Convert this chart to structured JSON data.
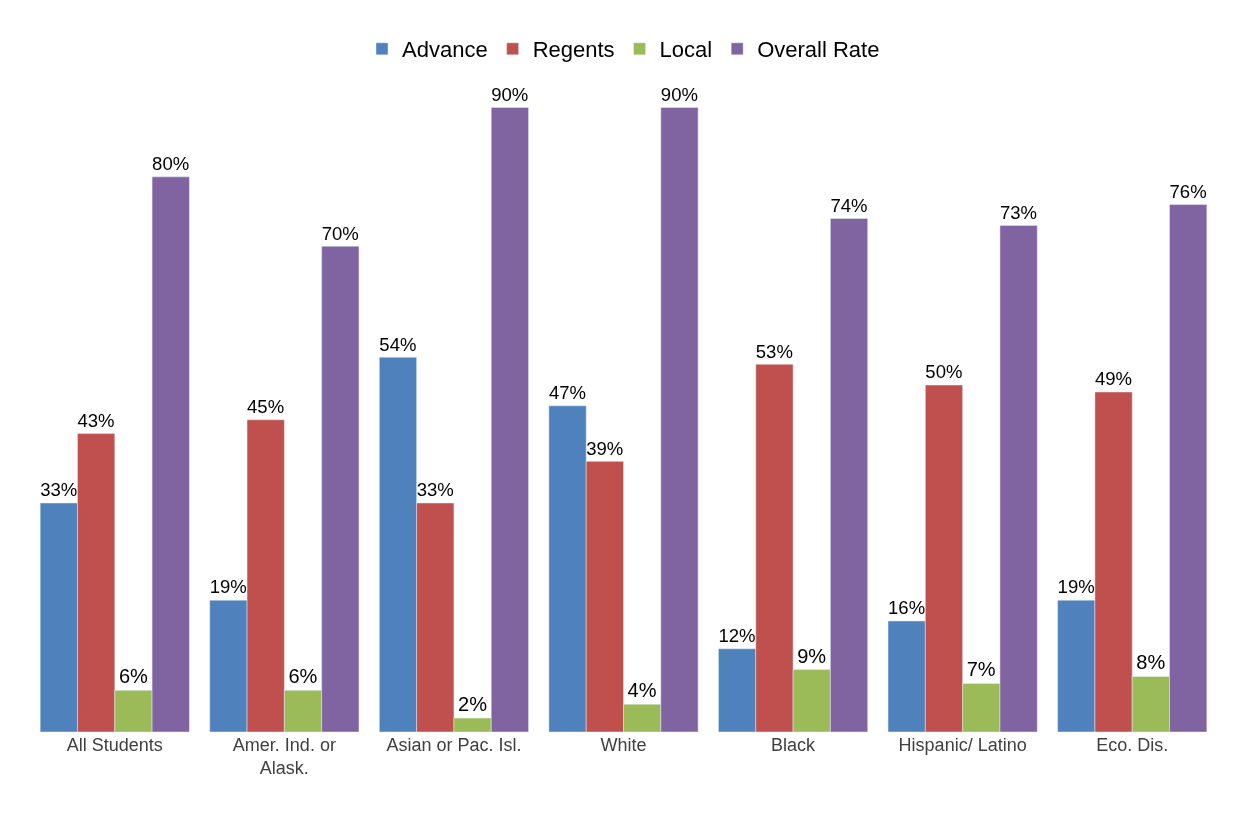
{
  "chart_data": {
    "type": "bar",
    "categories": [
      "All Students",
      "Amer. Ind. or\nAlask.",
      "Asian or Pac. Isl.",
      "White",
      "Black",
      "Hispanic/ Latino",
      "Eco. Dis."
    ],
    "series": [
      {
        "name": "Advance",
        "color": "#4f81bd",
        "values": [
          33,
          19,
          54,
          47,
          12,
          16,
          19
        ],
        "value_labels": [
          "33%",
          "19%",
          "54%",
          "47%",
          "12%",
          "16%",
          "19%"
        ]
      },
      {
        "name": "Regents",
        "color": "#c0504d",
        "values": [
          43,
          45,
          33,
          39,
          53,
          50,
          49
        ],
        "value_labels": [
          "43%",
          "45%",
          "33%",
          "39%",
          "53%",
          "50%",
          "49%"
        ]
      },
      {
        "name": "Local",
        "color": "#9bbb59",
        "values": [
          6,
          6,
          2,
          4,
          9,
          7,
          8
        ],
        "value_labels": [
          "6%",
          "6%",
          "2%",
          "4%",
          "9%",
          "7%",
          "8%"
        ]
      },
      {
        "name": "Overall Rate",
        "color": "#8064a2",
        "values": [
          80,
          70,
          90,
          90,
          74,
          73,
          76
        ],
        "value_labels": [
          "80%",
          "70%",
          "90%",
          "90%",
          "74%",
          "73%",
          "76%"
        ]
      }
    ],
    "legend": "top"
  }
}
